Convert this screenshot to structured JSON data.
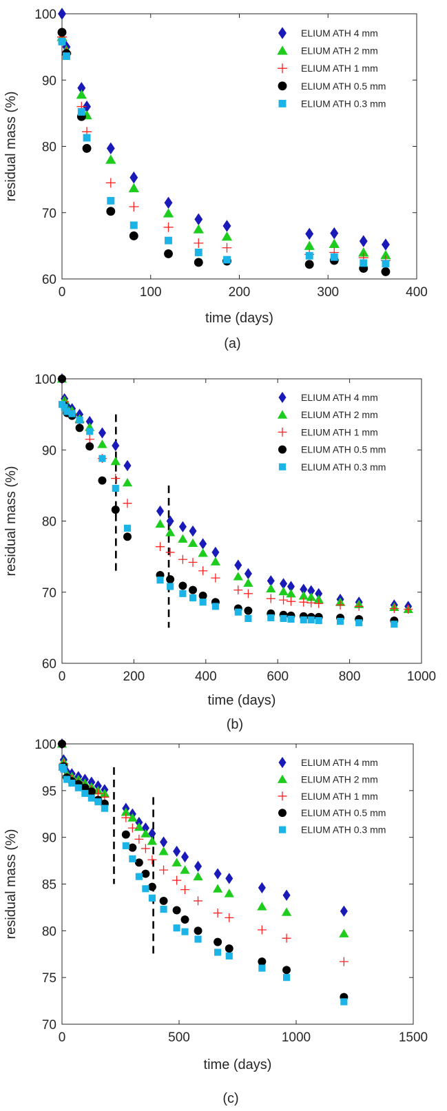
{
  "chart_data": [
    {
      "type": "scatter",
      "caption": "(a)",
      "xlabel": "time (days)",
      "ylabel": "residual mass (%)",
      "xlim": [
        0,
        400
      ],
      "ylim": [
        60,
        100
      ],
      "xticks": [
        0,
        100,
        200,
        300,
        400
      ],
      "yticks": [
        60,
        70,
        80,
        90,
        100
      ],
      "grid": false,
      "legend_position": "top-right",
      "markers": [],
      "series": [
        {
          "name": "ELIUM ATH 4 mm",
          "marker": "diamond",
          "color": "#1a1ab8",
          "x": [
            0,
            5,
            22,
            28,
            55,
            81,
            120,
            154,
            186,
            279,
            307,
            340,
            365
          ],
          "y": [
            100,
            95,
            88.8,
            86,
            79.7,
            75.3,
            71.5,
            69,
            68,
            66.8,
            66.9,
            65.7,
            65.2
          ]
        },
        {
          "name": "ELIUM ATH 2 mm",
          "marker": "triangle",
          "color": "#1ecc1e",
          "x": [
            0,
            5,
            22,
            28,
            55,
            81,
            120,
            154,
            186,
            279,
            307,
            340,
            365
          ],
          "y": [
            96.5,
            94.5,
            87.8,
            84.7,
            78,
            73.7,
            69.9,
            67.5,
            66.4,
            65,
            65.3,
            64,
            63.6
          ]
        },
        {
          "name": "ELIUM ATH 1 mm",
          "marker": "plus",
          "color": "#ff2020",
          "x": [
            0,
            5,
            22,
            28,
            55,
            81,
            120,
            154,
            186,
            279,
            307,
            340,
            365
          ],
          "y": [
            96.5,
            94.2,
            86,
            82.2,
            74.5,
            70.9,
            67.8,
            65.4,
            64.7,
            63.7,
            64,
            63.2,
            62.8
          ]
        },
        {
          "name": "ELIUM ATH 0.5 mm",
          "marker": "circle",
          "color": "#000000",
          "x": [
            0,
            5,
            22,
            28,
            55,
            81,
            120,
            154,
            186,
            279,
            307,
            340,
            365
          ],
          "y": [
            97.2,
            94,
            84.5,
            79.7,
            70.2,
            66.5,
            63.8,
            62.5,
            62.7,
            62.2,
            62.8,
            61.6,
            61.1
          ]
        },
        {
          "name": "ELIUM ATH 0.3 mm",
          "marker": "square",
          "color": "#1cb4e6",
          "x": [
            0,
            5,
            22,
            28,
            55,
            81,
            120,
            154,
            186,
            279,
            307,
            340,
            365
          ],
          "y": [
            95.8,
            93.6,
            85.2,
            81.3,
            71.8,
            68.1,
            65.8,
            64,
            62.9,
            63.5,
            63.3,
            62.4,
            62.3
          ]
        }
      ]
    },
    {
      "type": "scatter",
      "caption": "(b)",
      "xlabel": "time (days)",
      "ylabel": "residual mass (%)",
      "xlim": [
        0,
        1000
      ],
      "ylim": [
        60,
        100
      ],
      "xticks": [
        0,
        200,
        400,
        600,
        800,
        1000
      ],
      "yticks": [
        60,
        70,
        80,
        90,
        100
      ],
      "grid": false,
      "legend_position": "top-right",
      "markers": [
        {
          "x": 150,
          "y1": 72.5,
          "y2": 95
        },
        {
          "x": 297,
          "y1": 65,
          "y2": 85
        }
      ],
      "series": [
        {
          "name": "ELIUM ATH 4 mm",
          "marker": "diamond",
          "color": "#1a1ab8",
          "x": [
            0,
            7,
            14,
            28,
            49,
            77,
            112,
            149,
            182,
            273,
            301,
            336,
            364,
            392,
            427,
            490,
            518,
            581,
            616,
            637,
            672,
            693,
            714,
            774,
            826,
            924,
            963
          ],
          "y": [
            100,
            97.2,
            96.2,
            95.8,
            95,
            94,
            92.4,
            90.6,
            87.8,
            81.4,
            80,
            79.2,
            78.6,
            76.8,
            75.6,
            73.8,
            72.6,
            71.6,
            71.2,
            70.8,
            70.4,
            70.2,
            69.8,
            69,
            68.6,
            68.2,
            68
          ]
        },
        {
          "name": "ELIUM ATH 2 mm",
          "marker": "triangle",
          "color": "#1ecc1e",
          "x": [
            0,
            7,
            14,
            28,
            49,
            77,
            112,
            149,
            182,
            273,
            301,
            336,
            364,
            392,
            427,
            490,
            518,
            581,
            616,
            637,
            672,
            693,
            714,
            774,
            826,
            924,
            963
          ],
          "y": [
            100,
            97,
            96,
            95.5,
            94.4,
            93.2,
            90.8,
            88.4,
            85.4,
            79.6,
            78.4,
            77.5,
            76.9,
            75.5,
            74.3,
            72.2,
            71.3,
            70.5,
            70.1,
            69.8,
            69.5,
            69.3,
            69,
            68.6,
            68.3,
            67.9,
            67.6
          ]
        },
        {
          "name": "ELIUM ATH 1 mm",
          "marker": "plus",
          "color": "#ff2020",
          "x": [
            0,
            7,
            14,
            28,
            49,
            77,
            112,
            149,
            182,
            273,
            301,
            336,
            364,
            392,
            427,
            490,
            518,
            581,
            616,
            637,
            672,
            693,
            714,
            774,
            826,
            924,
            963
          ],
          "y": [
            100,
            96.8,
            95.6,
            95,
            93.8,
            91.5,
            88.8,
            86,
            82.5,
            76.4,
            75.6,
            74.6,
            74.2,
            73,
            72,
            70.3,
            69.8,
            69.1,
            68.9,
            68.7,
            68.6,
            68.5,
            68.4,
            68.2,
            68,
            67.7,
            67.6
          ]
        },
        {
          "name": "ELIUM ATH 0.5 mm",
          "marker": "circle",
          "color": "#000000",
          "x": [
            0,
            7,
            14,
            28,
            49,
            77,
            112,
            149,
            182,
            273,
            301,
            336,
            364,
            392,
            427,
            490,
            518,
            581,
            616,
            637,
            672,
            693,
            714,
            774,
            826,
            924
          ],
          "y": [
            100,
            96.2,
            95.2,
            94.8,
            93.1,
            90.5,
            85.7,
            81.6,
            77.8,
            72.4,
            71.8,
            70.9,
            70.3,
            69.5,
            68.6,
            67.7,
            67.4,
            67,
            66.8,
            66.7,
            66.6,
            66.5,
            66.5,
            66.4,
            66.2,
            66
          ]
        },
        {
          "name": "ELIUM ATH 0.3 mm",
          "marker": "square",
          "color": "#1cb4e6",
          "x": [
            0,
            7,
            14,
            28,
            49,
            77,
            112,
            149,
            182,
            273,
            301,
            336,
            364,
            392,
            427,
            490,
            518,
            581,
            616,
            637,
            672,
            693,
            714,
            774,
            826,
            924
          ],
          "y": [
            96.4,
            96,
            95.4,
            95.1,
            94.2,
            92.6,
            88.8,
            84.6,
            79,
            71.7,
            70.8,
            69.8,
            69.2,
            68.6,
            68,
            67.2,
            66.3,
            66.4,
            66.3,
            66.2,
            66.1,
            66.1,
            66,
            65.9,
            65.7,
            65.5
          ]
        }
      ]
    },
    {
      "type": "scatter",
      "caption": "(c)",
      "xlabel": "time (days)",
      "ylabel": "residual mass (%)",
      "xlim": [
        0,
        1500
      ],
      "ylim": [
        70,
        100
      ],
      "xticks": [
        0,
        500,
        1000,
        1500
      ],
      "yticks": [
        70,
        75,
        80,
        85,
        90,
        95,
        100
      ],
      "grid": false,
      "legend_position": "top-right",
      "markers": [
        {
          "x": 222,
          "y1": 85,
          "y2": 97.5
        },
        {
          "x": 390,
          "y1": 77.5,
          "y2": 94.3
        }
      ],
      "series": [
        {
          "name": "ELIUM ATH 4 mm",
          "marker": "diamond",
          "color": "#1a1ab8",
          "x": [
            0,
            7,
            21,
            42,
            70,
            98,
            126,
            154,
            182,
            273,
            301,
            329,
            357,
            385,
            434,
            490,
            525,
            581,
            665,
            714,
            854,
            959,
            1204
          ],
          "y": [
            100,
            98.3,
            97,
            96.8,
            96.5,
            96.2,
            95.9,
            95.5,
            95.1,
            93.1,
            92.5,
            91.6,
            91,
            90.4,
            89.5,
            88.5,
            87.9,
            86.9,
            86.1,
            85.6,
            84.6,
            83.8,
            82.1
          ]
        },
        {
          "name": "ELIUM ATH 2 mm",
          "marker": "triangle",
          "color": "#1ecc1e",
          "x": [
            0,
            7,
            21,
            42,
            70,
            98,
            126,
            154,
            182,
            273,
            301,
            329,
            357,
            385,
            434,
            490,
            525,
            581,
            665,
            714,
            854,
            959,
            1204
          ],
          "y": [
            100,
            98.1,
            96.8,
            96.5,
            96.2,
            95.8,
            95.4,
            95,
            94.7,
            92.7,
            92.1,
            91.1,
            90.4,
            89.6,
            88.5,
            87.3,
            86.5,
            85.8,
            84.5,
            84,
            82.6,
            82,
            79.7
          ]
        },
        {
          "name": "ELIUM ATH 1 mm",
          "marker": "plus",
          "color": "#ff2020",
          "x": [
            0,
            7,
            21,
            42,
            70,
            98,
            126,
            154,
            182,
            273,
            301,
            329,
            357,
            385,
            434,
            490,
            525,
            581,
            665,
            714,
            854,
            959,
            1204
          ],
          "y": [
            100,
            97.9,
            96.6,
            96.2,
            95.9,
            95.5,
            95.1,
            94.7,
            94.3,
            92.1,
            91,
            89.8,
            88.8,
            87.6,
            86.5,
            85.4,
            84.4,
            83.2,
            81.9,
            81.4,
            80.1,
            79.2,
            76.7
          ]
        },
        {
          "name": "ELIUM ATH 0.5 mm",
          "marker": "circle",
          "color": "#000000",
          "x": [
            0,
            7,
            21,
            42,
            70,
            98,
            126,
            154,
            182,
            273,
            301,
            329,
            357,
            385,
            434,
            490,
            525,
            581,
            665,
            714,
            854,
            959,
            1204
          ],
          "y": [
            100,
            97.6,
            96.4,
            96,
            95.7,
            95.3,
            94.9,
            94,
            93.6,
            90.3,
            88.9,
            87.3,
            86.1,
            84.7,
            83.2,
            82.2,
            81.2,
            80,
            78.8,
            78.1,
            76.7,
            75.8,
            72.9
          ]
        },
        {
          "name": "ELIUM ATH 0.3 mm",
          "marker": "square",
          "color": "#1cb4e6",
          "x": [
            0,
            7,
            21,
            42,
            70,
            98,
            126,
            154,
            182,
            273,
            301,
            329,
            357,
            385,
            434,
            490,
            525,
            581,
            665,
            714,
            854,
            959,
            1204
          ],
          "y": [
            97.5,
            97.3,
            96.2,
            95.8,
            95.3,
            94.7,
            94.2,
            93.8,
            93.1,
            89.1,
            87.7,
            85.8,
            84.5,
            83.5,
            82.3,
            80.3,
            79.9,
            79.1,
            77.7,
            77.3,
            76,
            75,
            72.4
          ]
        }
      ]
    }
  ]
}
